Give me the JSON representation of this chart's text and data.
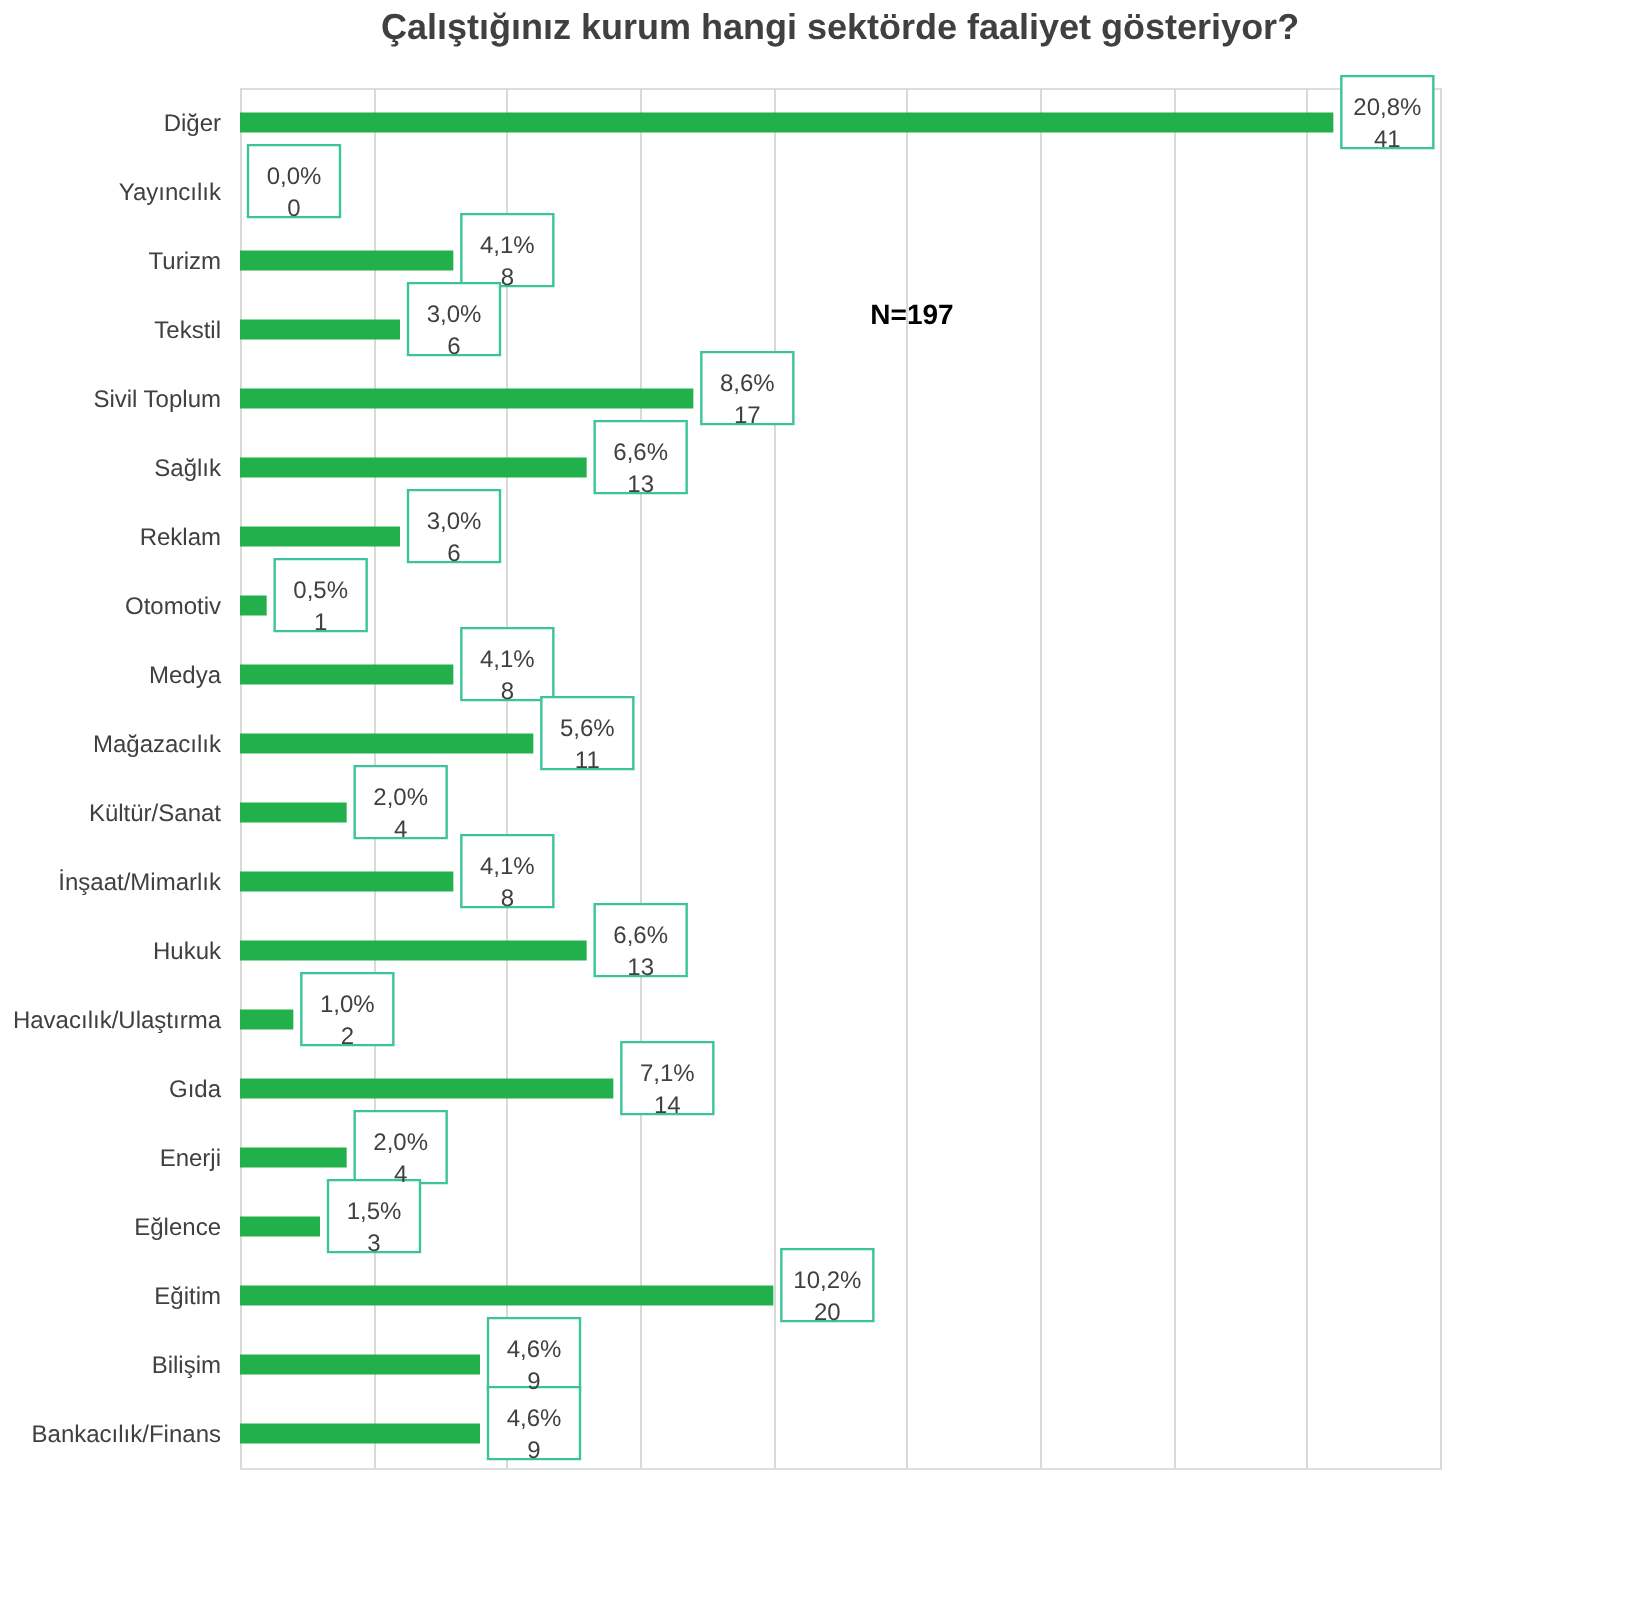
{
  "chart_data": {
    "type": "bar",
    "orientation": "horizontal",
    "title": "Çalıştığınız  kurum hangi sektörde faaliyet gösteriyor?",
    "categories": [
      "Diğer",
      "Yayıncılık",
      "Turizm",
      "Tekstil",
      "Sivil Toplum",
      "Sağlık",
      "Reklam",
      "Otomotiv",
      "Medya",
      "Mağazacılık",
      "Kültür/Sanat",
      "İnşaat/Mimarlık",
      "Hukuk",
      "Havacılık/Ulaştırma",
      "Gıda",
      "Enerji",
      "Eğlence",
      "Eğitim",
      "Bilişim",
      "Bankacılık/Finans"
    ],
    "series": [
      {
        "color": "#21b04b",
        "values": [
          41,
          0,
          8,
          6,
          17,
          13,
          6,
          1,
          8,
          11,
          4,
          8,
          13,
          2,
          14,
          4,
          3,
          20,
          9,
          9
        ],
        "value_labels": [
          "20,8%\n41",
          "0,0%\n0",
          "4,1%\n8",
          "3,0%\n6",
          "8,6%\n17",
          "6,6%\n13",
          "3,0%\n6",
          "0,5%\n1",
          "4,1%\n8",
          "5,6%\n11",
          "2,0%\n4",
          "4,1%\n8",
          "6,6%\n13",
          "1,0%\n2",
          "7,1%\n14",
          "2,0%\n4",
          "1,5%\n3",
          "10,2%\n20",
          "4,6%\n9",
          "4,6%\n9"
        ]
      }
    ],
    "xlim": [
      0,
      45
    ],
    "xticks": [
      {
        "value": 0,
        "label": null
      },
      {
        "value": 5,
        "label": null
      },
      {
        "value": 10,
        "label": null
      },
      {
        "value": 15,
        "label": null
      },
      {
        "value": 20,
        "label": null
      },
      {
        "value": 25,
        "label": null
      },
      {
        "value": 30,
        "label": null
      },
      {
        "value": 35,
        "label": null
      },
      {
        "value": 40,
        "label": null
      },
      {
        "value": 45,
        "label": null
      }
    ],
    "tick_labels": "y",
    "grid": "x",
    "annotations": [
      {
        "text": "N=197"
      }
    ]
  }
}
